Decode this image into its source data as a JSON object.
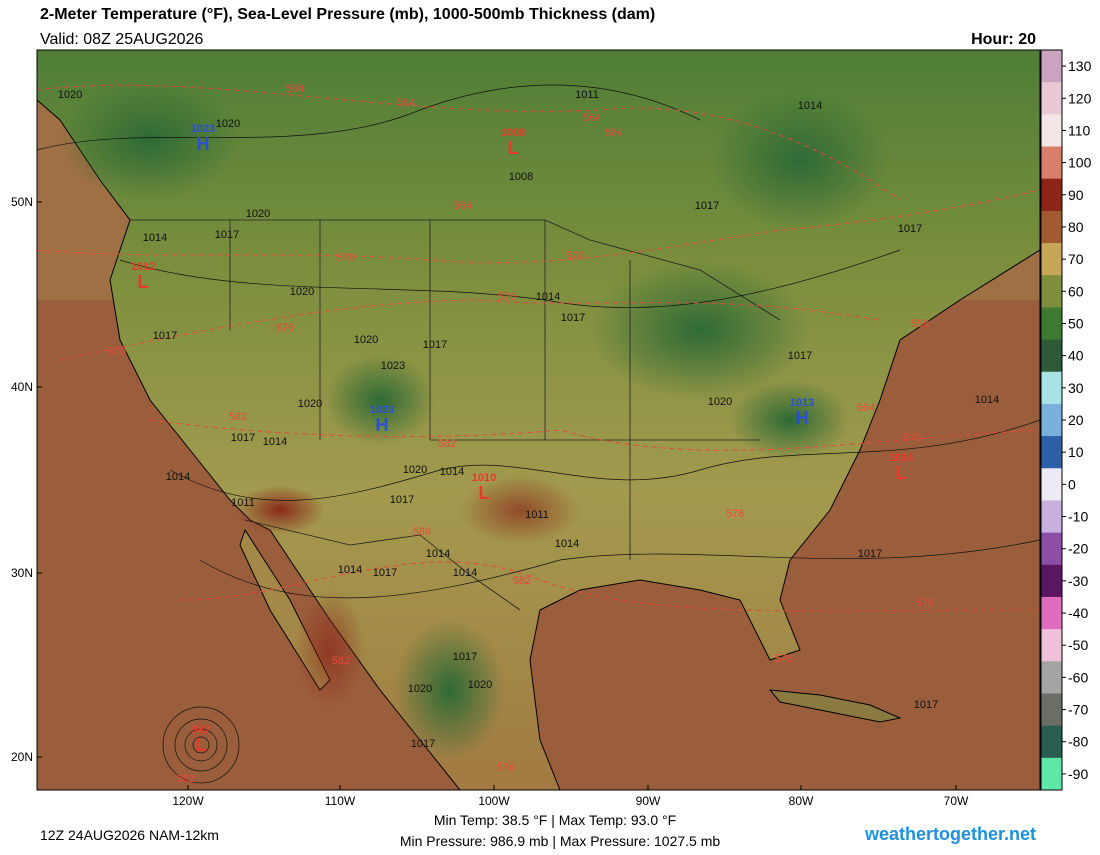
{
  "header": {
    "title": "2-Meter Temperature (°F), Sea-Level Pressure (mb), 1000-500mb Thickness (dam)",
    "valid": "Valid: 08Z 25AUG2026",
    "hour": "Hour: 20"
  },
  "footer": {
    "run": "12Z 24AUG2026 NAM-12km",
    "temp_range": "Min Temp:  38.5 °F | Max Temp:  93.0 °F",
    "pressure_range": "Min Pressure: 986.9 mb | Max Pressure: 1027.5 mb",
    "site": "weathertogether.net"
  },
  "map": {
    "lat_labels": [
      "50N",
      "40N",
      "30N",
      "20N"
    ],
    "lon_labels": [
      "120W",
      "110W",
      "100W",
      "90W",
      "80W",
      "70W"
    ],
    "centers": [
      {
        "letter": "H",
        "value": "1023",
        "color": "#2a4fd6"
      },
      {
        "letter": "L",
        "value": "1008",
        "color": "#e83a2a"
      },
      {
        "letter": "L",
        "value": "1012",
        "color": "#e83a2a"
      },
      {
        "letter": "H",
        "value": "1023",
        "color": "#2a4fd6"
      },
      {
        "letter": "L",
        "value": "1010",
        "color": "#e83a2a"
      },
      {
        "letter": "H",
        "value": "1013",
        "color": "#2a4fd6"
      },
      {
        "letter": "L",
        "value": "1014",
        "color": "#e83a2a"
      },
      {
        "letter": "L",
        "value": "987",
        "color": "#e83a2a"
      }
    ],
    "pressure_labels": [
      "1020",
      "1020",
      "1011",
      "1008",
      "1014",
      "1017",
      "1017",
      "1020",
      "1017",
      "1014",
      "1020",
      "1017",
      "1020",
      "1017",
      "1023",
      "1014",
      "1017",
      "1017",
      "1020",
      "1014",
      "1017",
      "1014",
      "1020",
      "1014",
      "1011",
      "1017",
      "1011",
      "1014",
      "1014",
      "1014",
      "1017",
      "1014",
      "1020",
      "1014",
      "1017",
      "1017",
      "1020",
      "1020",
      "1017",
      "1017"
    ],
    "thickness_labels": [
      "564",
      "564",
      "564",
      "564",
      "564",
      "570",
      "570",
      "576",
      "576",
      "570",
      "582",
      "582",
      "588",
      "582",
      "576",
      "582",
      "576",
      "576",
      "576",
      "582",
      "570",
      "558",
      "564"
    ]
  },
  "colorbar": {
    "ticks": [
      130,
      120,
      110,
      100,
      90,
      80,
      70,
      60,
      50,
      40,
      30,
      20,
      10,
      0,
      -10,
      -20,
      -30,
      -40,
      -50,
      -60,
      -70,
      -80,
      -90
    ],
    "colors": [
      "#c9a3c0",
      "#e9c8d6",
      "#f4e6e6",
      "#d97e6a",
      "#8c2418",
      "#a45a30",
      "#c7a659",
      "#7f8e3b",
      "#3f7a32",
      "#2e5a38",
      "#a8e2e4",
      "#7ab0de",
      "#2c5fa8",
      "#eeeaf4",
      "#c8b0de",
      "#8c4ea6",
      "#5a1660",
      "#e06cc0",
      "#f0bfd8",
      "#a4a4a4",
      "#6a6e66",
      "#2a5e50",
      "#5ee8a8"
    ]
  }
}
